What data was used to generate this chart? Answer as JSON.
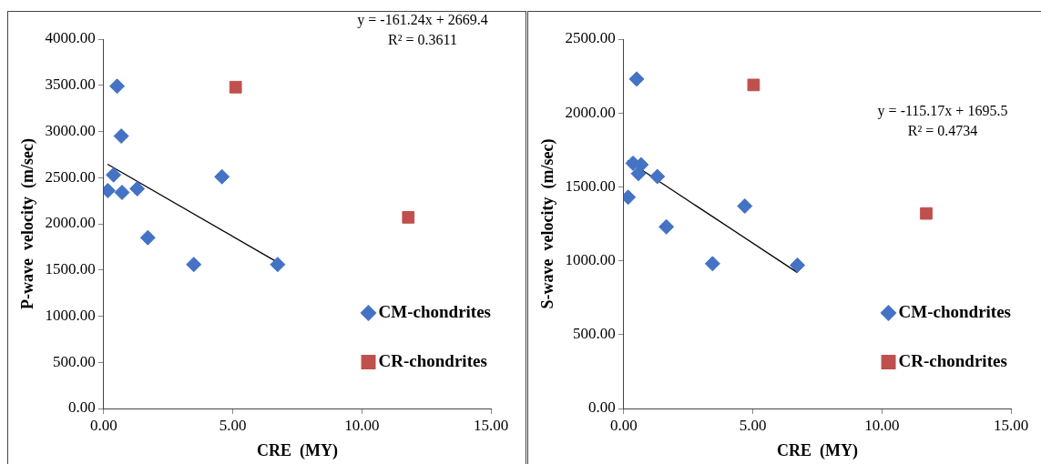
{
  "chart_data": [
    {
      "type": "scatter",
      "xlabel": "CRE  (MY)",
      "ylabel": "P-wave  velocity  (m/sec)",
      "xlim": [
        0,
        15
      ],
      "xticks": [
        {
          "value": 0,
          "label": "0.00"
        },
        {
          "value": 5,
          "label": "5.00"
        },
        {
          "value": 10,
          "label": "10.00"
        },
        {
          "value": 15,
          "label": "15.00"
        }
      ],
      "ylim": [
        0,
        4000
      ],
      "yticks": [
        {
          "value": 0,
          "label": "0.00"
        },
        {
          "value": 500,
          "label": "500.00"
        },
        {
          "value": 1000,
          "label": "1000.00"
        },
        {
          "value": 1500,
          "label": "1500.00"
        },
        {
          "value": 2000,
          "label": "2000.00"
        },
        {
          "value": 2500,
          "label": "2500.00"
        },
        {
          "value": 3000,
          "label": "3000.00"
        },
        {
          "value": 3500,
          "label": "3500.00"
        },
        {
          "value": 4000,
          "label": "4000.00"
        }
      ],
      "grid": false,
      "legend": "bottom right",
      "annotations": [
        "y = -161.24x + 2669.4",
        "R² = 0.3611"
      ],
      "series": [
        {
          "name": "CM-chondrites",
          "color": "#4472c4",
          "marker": "diamond",
          "x": [
            0.52,
            0.68,
            0.38,
            0.16,
            0.71,
            1.3,
            1.71,
            4.58,
            3.49,
            6.74
          ],
          "values": [
            3490,
            2950,
            2530,
            2360,
            2340,
            2380,
            1850,
            2510,
            1560,
            1560
          ]
        },
        {
          "name": "CR-chondrites",
          "color": "#c0504d",
          "marker": "square",
          "x": [
            5.11,
            11.8
          ],
          "values": [
            3480,
            2070
          ]
        },
        {
          "type": "line",
          "color": "#000000",
          "marker": "none",
          "x": [
            0.15,
            6.74
          ],
          "values": [
            2645,
            1583
          ]
        }
      ]
    },
    {
      "type": "scatter",
      "xlabel": "CRE  (MY)",
      "ylabel": "S-wave  velocity  (m/sec)",
      "xlim": [
        0,
        15
      ],
      "xticks": [
        {
          "value": 0,
          "label": "0.00"
        },
        {
          "value": 5,
          "label": "5.00"
        },
        {
          "value": 10,
          "label": "10.00"
        },
        {
          "value": 15,
          "label": "15.00"
        }
      ],
      "ylim": [
        0,
        2500
      ],
      "yticks": [
        {
          "value": 0,
          "label": "0.00"
        },
        {
          "value": 500,
          "label": "500.00"
        },
        {
          "value": 1000,
          "label": "1000.00"
        },
        {
          "value": 1500,
          "label": "1500.00"
        },
        {
          "value": 2000,
          "label": "2000.00"
        },
        {
          "value": 2500,
          "label": "2500.00"
        }
      ],
      "grid": false,
      "legend": "bottom right",
      "annotations": [
        "y = -115.17x + 1695.5",
        "R² = 0.4734"
      ],
      "series": [
        {
          "name": "CM-chondrites",
          "color": "#4472c4",
          "marker": "diamond",
          "x": [
            0.5,
            0.17,
            0.36,
            0.67,
            0.57,
            1.3,
            1.65,
            4.69,
            3.44,
            6.73
          ],
          "values": [
            2230,
            1430,
            1660,
            1650,
            1590,
            1570,
            1230,
            1370,
            980,
            970
          ]
        },
        {
          "name": "CR-chondrites",
          "color": "#c0504d",
          "marker": "square",
          "x": [
            5.03,
            11.72
          ],
          "values": [
            2190,
            1320
          ]
        },
        {
          "type": "line",
          "color": "#000000",
          "marker": "none",
          "x": [
            0.15,
            6.73
          ],
          "values": [
            1678,
            920
          ]
        }
      ]
    }
  ]
}
